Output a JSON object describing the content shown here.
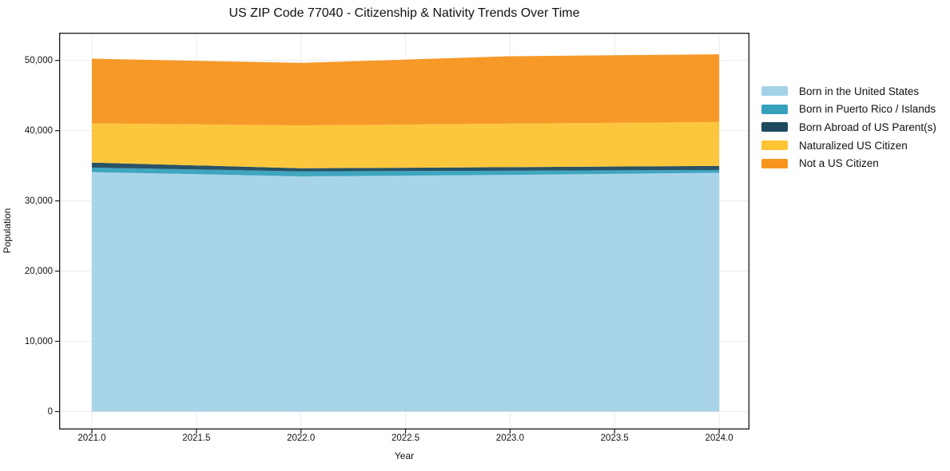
{
  "title": "US ZIP Code 77040 - Citizenship & Nativity Trends Over Time",
  "axes": {
    "x": {
      "label": "Year",
      "ticks": [
        "2021.0",
        "2021.5",
        "2022.0",
        "2022.5",
        "2023.0",
        "2023.5",
        "2024.0"
      ],
      "tick_values": [
        2021.0,
        2021.5,
        2022.0,
        2022.5,
        2023.0,
        2023.5,
        2024.0
      ]
    },
    "y": {
      "label": "Population",
      "ticks": [
        "0",
        "10,000",
        "20,000",
        "30,000",
        "40,000",
        "50,000"
      ],
      "tick_values": [
        0,
        10000,
        20000,
        30000,
        40000,
        50000
      ]
    }
  },
  "legend": {
    "position": "right-outside",
    "items": [
      "Born in the United States",
      "Born in Puerto Rico / Islands",
      "Born Abroad of US Parent(s)",
      "Naturalized US Citizen",
      "Not a US Citizen"
    ]
  },
  "chart_data": {
    "type": "area",
    "stacked": true,
    "title": "US ZIP Code 77040 - Citizenship & Nativity Trends Over Time",
    "xlabel": "Year",
    "ylabel": "Population",
    "x": [
      2021,
      2022,
      2023,
      2024
    ],
    "series": [
      {
        "name": "Born in the United States",
        "color": "#A3D2E8",
        "values": [
          34100,
          33500,
          33700,
          34000
        ]
      },
      {
        "name": "Born in Puerto Rico / Islands",
        "color": "#35A1BD",
        "values": [
          650,
          700,
          600,
          400
        ]
      },
      {
        "name": "Born Abroad of US Parent(s)",
        "color": "#1D4A5E",
        "values": [
          700,
          450,
          500,
          580
        ]
      },
      {
        "name": "Naturalized US Citizen",
        "color": "#FDC433",
        "values": [
          5600,
          6100,
          6200,
          6250
        ]
      },
      {
        "name": "Not a US Citizen",
        "color": "#F7941E",
        "values": [
          9200,
          8900,
          9600,
          9650
        ]
      }
    ],
    "totals": [
      50250,
      49650,
      50600,
      50880
    ],
    "xlim": [
      2020.84,
      2024.16
    ],
    "ylim": [
      0,
      53950
    ],
    "grid": true,
    "legend_position": "right"
  },
  "colors": {
    "background": "#ffffff",
    "grid": "#ebebeb",
    "spine": "#1a1a1a",
    "text": "#111111"
  }
}
